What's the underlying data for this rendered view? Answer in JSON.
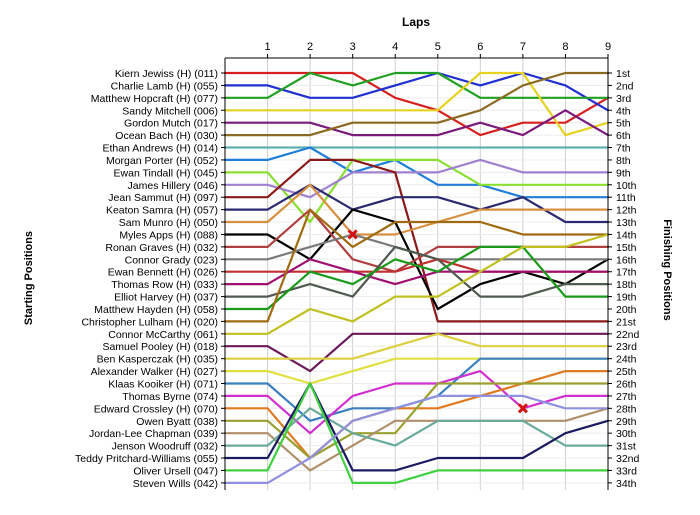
{
  "chart_data": {
    "type": "line",
    "title": "Laps",
    "ylabel_left": "Starting Positions",
    "ylabel_right": "Finishing Positions",
    "x_ticks": [
      "1",
      "2",
      "3",
      "4",
      "5",
      "6",
      "7",
      "8",
      "9"
    ],
    "x_range": [
      0,
      9
    ],
    "y_range": [
      1,
      34
    ],
    "grid": true,
    "start_labels": [
      "Kiern Jewiss (H) (011)",
      "Charlie Lamb (H) (055)",
      "Matthew Hopcraft (H) (077)",
      "Sandy Mitchell (006)",
      "Gordon Mutch (017)",
      "Ocean Bach (H) (030)",
      "Ethan Andrews (H) (014)",
      "Morgan Porter (H) (052)",
      "Ewan Tindall (H) (045)",
      "James Hillery (046)",
      "Jean Sammut (H) (097)",
      "Keaton Samra (H) (057)",
      "Sam Munro (H) (050)",
      "Myles Apps (H) (088)",
      "Ronan Graves (H) (032)",
      "Connor Grady (023)",
      "Ewan Bennett (H) (026)",
      "Thomas Row (H) (033)",
      "Elliot Harvey (H) (037)",
      "Matthew Hayden (H) (058)",
      "Christopher Lulham (H) (020)",
      "Connor McCarthy (061)",
      "Samuel Pooley (H) (018)",
      "Ben Kasperczak (H) (035)",
      "Alexander Walker (H) (027)",
      "Klaas Kooiker (H) (071)",
      "Thomas Byrne (074)",
      "Edward Crossley (H) (070)",
      "Owen Byatt (038)",
      "Jordan-Lee Chapman (039)",
      "Jenson Woodruff (032)",
      "Teddy Pritchard-Williams (055)",
      "Oliver Ursell (047)",
      "Steven Wills (042)"
    ],
    "finish_labels": [
      "1st",
      "2nd",
      "3rd",
      "4th",
      "5th",
      "6th",
      "7th",
      "8th",
      "9th",
      "10th",
      "11th",
      "12th",
      "13th",
      "14th",
      "15th",
      "16th",
      "17th",
      "18th",
      "19th",
      "20th",
      "21st",
      "22nd",
      "23rd",
      "24th",
      "25th",
      "26th",
      "27th",
      "28th",
      "29th",
      "30th",
      "31st",
      "32nd",
      "33rd",
      "34th"
    ],
    "retirement_markers": [
      {
        "x": 3,
        "y": 14
      },
      {
        "x": 7,
        "y": 28
      }
    ],
    "series": [
      {
        "color": "#d81f1f",
        "values": [
          1,
          1,
          1,
          3,
          4,
          6,
          5,
          5,
          3
        ]
      },
      {
        "color": "#1f2fd0",
        "values": [
          2,
          3,
          3,
          2,
          1,
          2,
          1,
          2,
          4
        ]
      },
      {
        "color": "#22a022",
        "values": [
          3,
          1,
          2,
          1,
          1,
          3,
          3,
          3,
          3
        ]
      },
      {
        "color": "#e6d21e",
        "values": [
          4,
          4,
          4,
          4,
          4,
          1,
          1,
          6,
          5
        ]
      },
      {
        "color": "#7b1a7b",
        "values": [
          5,
          5,
          6,
          6,
          6,
          5,
          6,
          4,
          6
        ]
      },
      {
        "color": "#8a6a20",
        "values": [
          6,
          6,
          5,
          5,
          5,
          4,
          2,
          1,
          1
        ]
      },
      {
        "color": "#5fb0b0",
        "values": [
          7,
          7,
          7,
          7,
          7,
          7,
          7,
          7,
          7
        ]
      },
      {
        "color": "#1f7fd8",
        "values": [
          8,
          7,
          9,
          8,
          10,
          10,
          11,
          11,
          11
        ]
      },
      {
        "color": "#8ae030",
        "values": [
          9,
          13,
          8,
          8,
          8,
          10,
          10,
          10,
          10
        ]
      },
      {
        "color": "#a080d0",
        "values": [
          10,
          11,
          9,
          9,
          9,
          8,
          9,
          9,
          9
        ]
      },
      {
        "color": "#8b1a1a",
        "values": [
          11,
          8,
          8,
          9,
          21,
          21,
          21,
          21,
          21
        ]
      },
      {
        "color": "#2a2a70",
        "values": [
          12,
          10,
          12,
          11,
          11,
          12,
          11,
          13,
          13
        ]
      },
      {
        "color": "#d89040",
        "values": [
          13,
          10,
          14,
          14,
          13,
          12,
          12,
          12,
          12
        ]
      },
      {
        "color": "#000000",
        "values": [
          14,
          16,
          12,
          13,
          20,
          18,
          17,
          18,
          16
        ]
      },
      {
        "color": "#b04040",
        "values": [
          15,
          12,
          16,
          17,
          15,
          15,
          15,
          15,
          15
        ]
      },
      {
        "color": "#7a7a7a",
        "values": [
          16,
          15,
          14,
          15,
          16,
          16,
          16,
          16,
          16
        ]
      },
      {
        "color": "#c03030",
        "values": [
          17,
          17,
          17,
          17,
          16,
          17,
          17,
          17,
          17
        ]
      },
      {
        "color": "#a01070",
        "values": [
          18,
          16,
          17,
          18,
          17,
          17,
          17,
          17,
          17
        ]
      },
      {
        "color": "#505a50",
        "values": [
          19,
          18,
          19,
          15,
          16,
          19,
          19,
          18,
          18
        ]
      },
      {
        "color": "#1a9a1a",
        "values": [
          20,
          17,
          18,
          16,
          17,
          15,
          15,
          19,
          19
        ]
      },
      {
        "color": "#a06a10",
        "values": [
          21,
          12,
          15,
          13,
          13,
          13,
          14,
          14,
          14
        ]
      },
      {
        "color": "#c0c020",
        "values": [
          22,
          20,
          21,
          19,
          19,
          17,
          15,
          15,
          14
        ]
      },
      {
        "color": "#6a1a5a",
        "values": [
          23,
          25,
          22,
          22,
          22,
          22,
          22,
          22,
          22
        ]
      },
      {
        "color": "#ddd040",
        "values": [
          24,
          24,
          24,
          23,
          22,
          23,
          23,
          23,
          23
        ]
      },
      {
        "color": "#e0e040",
        "values": [
          25,
          26,
          25,
          24,
          24,
          24,
          24,
          24,
          24
        ]
      },
      {
        "color": "#3a80c0",
        "values": [
          26,
          29,
          28,
          28,
          27,
          24,
          24,
          24,
          24
        ]
      },
      {
        "color": "#d030d0",
        "values": [
          27,
          30,
          27,
          26,
          26,
          25,
          28,
          27,
          27
        ]
      },
      {
        "color": "#e07a20",
        "values": [
          28,
          32,
          29,
          28,
          28,
          27,
          26,
          25,
          25
        ]
      },
      {
        "color": "#9aa030",
        "values": [
          29,
          32,
          30,
          30,
          26,
          26,
          26,
          26,
          26
        ]
      },
      {
        "color": "#b0906a",
        "values": [
          30,
          33,
          31,
          29,
          29,
          29,
          29,
          29,
          28
        ]
      },
      {
        "color": "#6aaa9a",
        "values": [
          31,
          28,
          30,
          31,
          29,
          29,
          29,
          31,
          31
        ]
      },
      {
        "color": "#1a1a60",
        "values": [
          32,
          26,
          33,
          33,
          32,
          32,
          32,
          30,
          29
        ]
      },
      {
        "color": "#40d040",
        "values": [
          33,
          26,
          34,
          34,
          33,
          33,
          33,
          33,
          33
        ]
      },
      {
        "color": "#9090e0",
        "values": [
          34,
          32,
          29,
          28,
          27,
          27,
          27,
          28,
          28
        ]
      }
    ]
  }
}
